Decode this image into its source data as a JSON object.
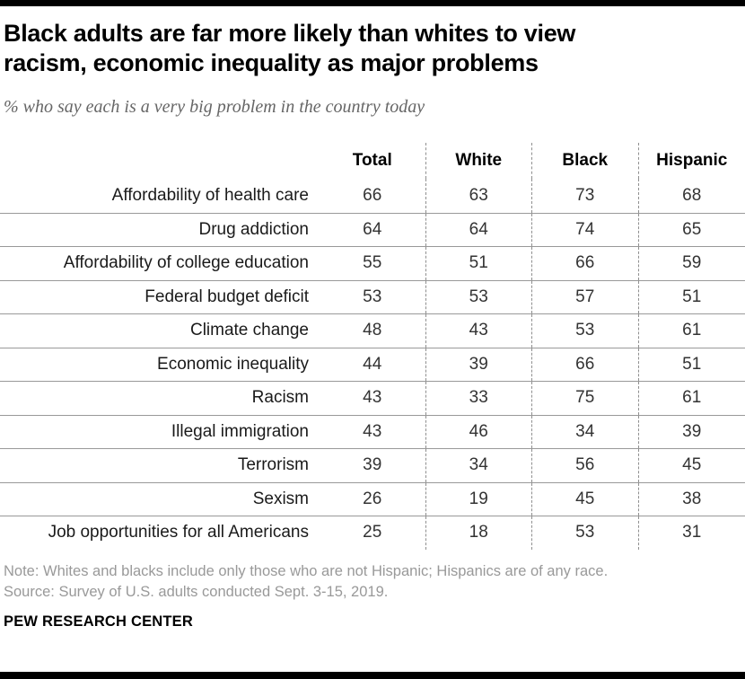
{
  "header": {
    "title_line1": "Black adults are far more likely than whites to view",
    "title_line2": "racism, economic inequality as major problems",
    "subtitle": "% who say each is a very big problem in the country today"
  },
  "chart_data": {
    "type": "table",
    "title": "Black adults are far more likely than whites to view racism, economic inequality as major problems",
    "subtitle": "% who say each is a very big problem in the country today",
    "columns": [
      "Total",
      "White",
      "Black",
      "Hispanic"
    ],
    "rows": [
      {
        "label": "Affordability of health care",
        "values": [
          66,
          63,
          73,
          68
        ]
      },
      {
        "label": "Drug addiction",
        "values": [
          64,
          64,
          74,
          65
        ]
      },
      {
        "label": "Affordability of college education",
        "values": [
          55,
          51,
          66,
          59
        ]
      },
      {
        "label": "Federal budget deficit",
        "values": [
          53,
          53,
          57,
          51
        ]
      },
      {
        "label": "Climate change",
        "values": [
          48,
          43,
          53,
          61
        ]
      },
      {
        "label": "Economic inequality",
        "values": [
          44,
          39,
          66,
          51
        ]
      },
      {
        "label": "Racism",
        "values": [
          43,
          33,
          75,
          61
        ]
      },
      {
        "label": "Illegal immigration",
        "values": [
          43,
          46,
          34,
          39
        ]
      },
      {
        "label": "Terrorism",
        "values": [
          39,
          34,
          56,
          45
        ]
      },
      {
        "label": "Sexism",
        "values": [
          26,
          19,
          45,
          38
        ]
      },
      {
        "label": "Job opportunities for all Americans",
        "values": [
          25,
          18,
          53,
          31
        ]
      }
    ],
    "layout": {
      "grid": "horizontal solid row separators, dashed vertical column dividers",
      "row_separator_color": "#999999",
      "column_divider_color": "#8f8f8f",
      "legend_position": "none"
    }
  },
  "footer": {
    "note": "Note: Whites and blacks include only those who are not Hispanic; Hispanics are of any race.",
    "source": "Source: Survey of U.S. adults conducted Sept. 3-15, 2019.",
    "branding": "PEW RESEARCH CENTER"
  },
  "colors": {
    "title": "#000000",
    "subtitle": "#666666",
    "note": "#999999",
    "accent_bar": "#000000"
  }
}
